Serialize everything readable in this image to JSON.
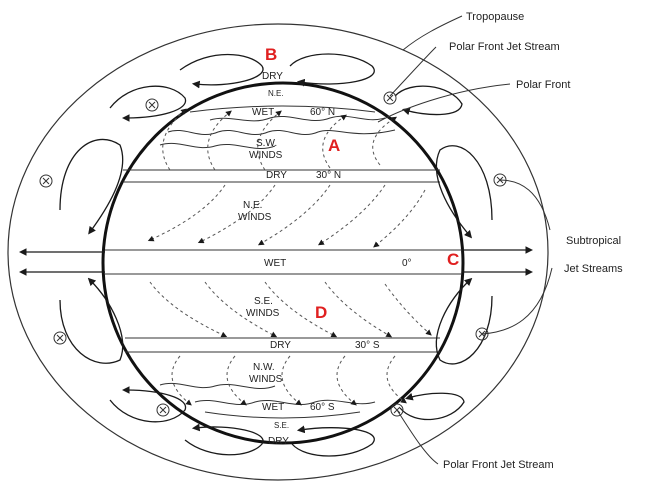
{
  "callouts": {
    "tropopause": "Tropopause",
    "polar_jet_top": "Polar Front Jet Stream",
    "polar_front": "Polar Front",
    "subtropical_line1": "Subtropical",
    "subtropical_line2": "Jet Streams",
    "polar_jet_bottom": "Polar Front Jet Stream"
  },
  "markers": {
    "a": "A",
    "b": "B",
    "c": "C",
    "d": "D"
  },
  "zones": {
    "dry_top": "DRY",
    "ne_top": "N.E.",
    "wet_60n": "WET",
    "lat_60n": "60° N",
    "sw_winds_1": "S.W.",
    "sw_winds_2": "WINDS",
    "dry_30n": "DRY",
    "lat_30n": "30° N",
    "ne_winds_1": "N.E.",
    "ne_winds_2": "WINDS",
    "wet_eq": "WET",
    "lat_0": "0°",
    "se_winds_1": "S.E.",
    "se_winds_2": "WINDS",
    "dry_30s": "DRY",
    "lat_30s": "30° S",
    "nw_winds_1": "N.W.",
    "nw_winds_2": "WINDS",
    "wet_60s": "WET",
    "lat_60s": "60° S",
    "se_bottom": "S.E.",
    "dry_bottom": "DRY"
  },
  "colors": {
    "line": "#1a1a1a",
    "marker": "#e02020"
  }
}
